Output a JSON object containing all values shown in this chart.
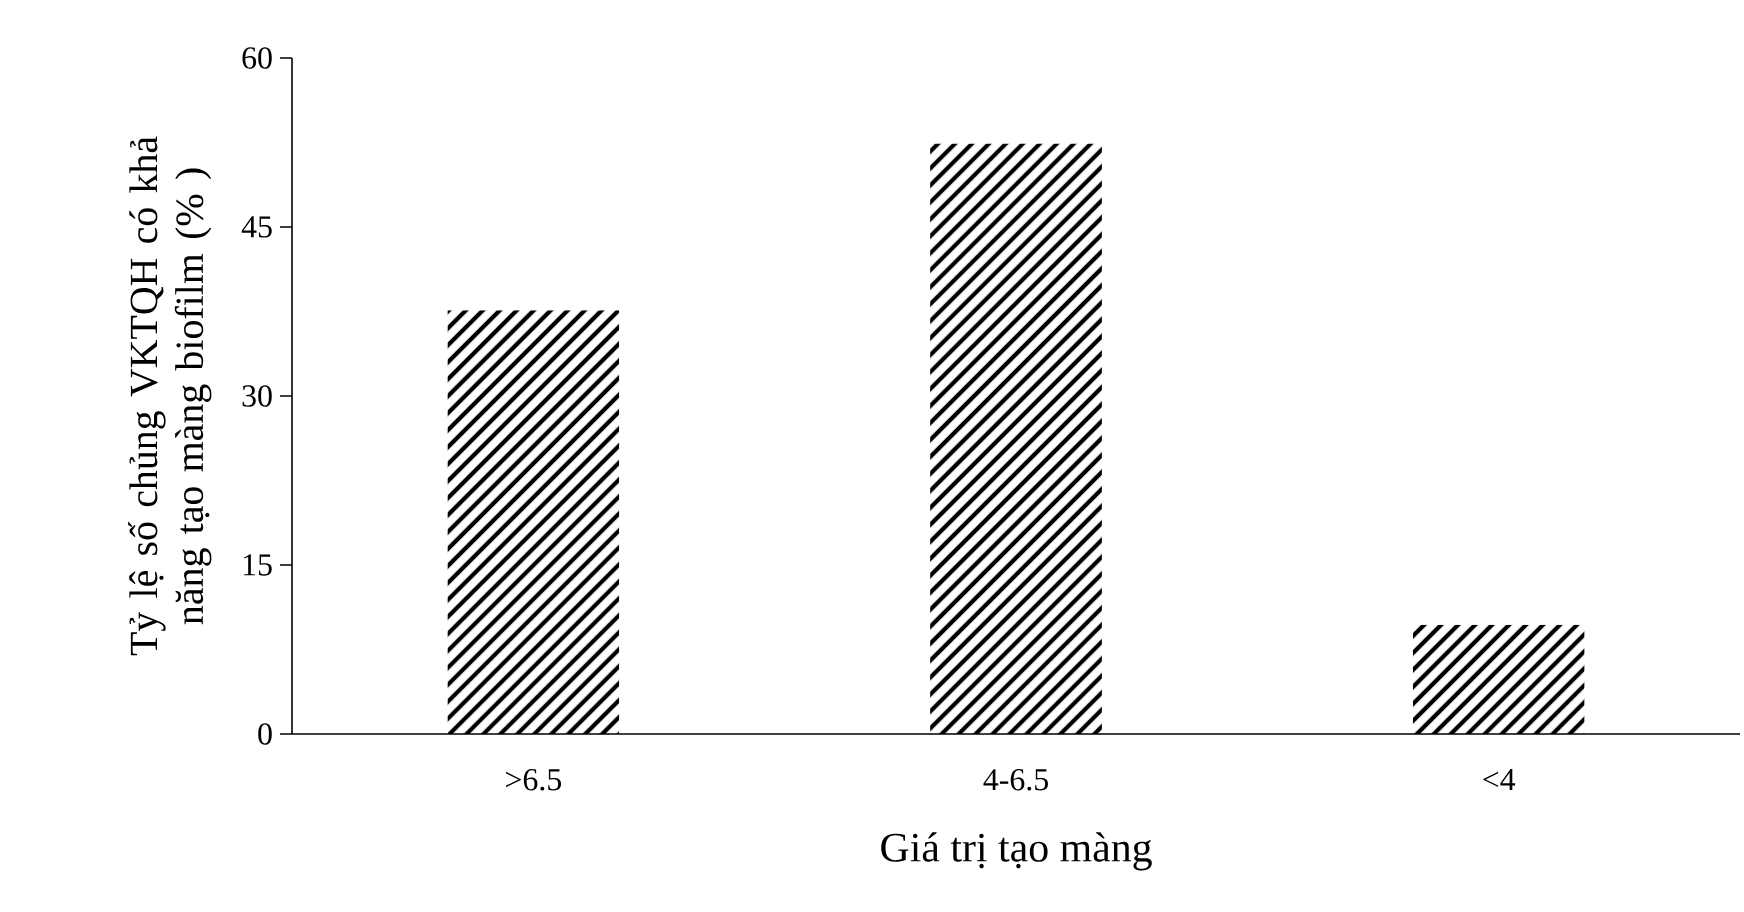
{
  "chart_data": {
    "type": "bar",
    "xlabel": "Giá trị tạo màng",
    "ylabel": "Tỷ lệ số chủng VKTQH có khả năng tạo màng biofilm (% )",
    "categories": [
      ">6.5",
      "4-6.5",
      "<4"
    ],
    "values": [
      37.6,
      52.4,
      9.7
    ],
    "color": "#000000",
    "ylim": [
      0,
      60
    ],
    "yticks": [
      0,
      15,
      30,
      45,
      60
    ]
  }
}
